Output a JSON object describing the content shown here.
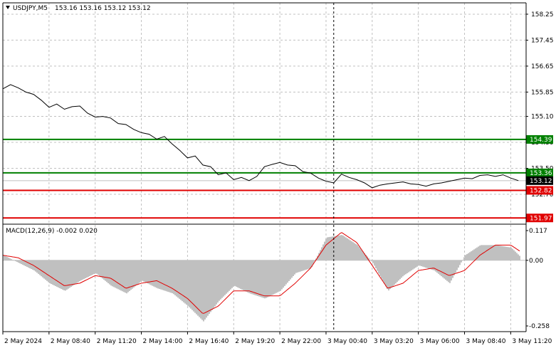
{
  "header": {
    "symbol": "USDJPY,M5",
    "ohlc": "153.16 153.16 153.12 153.12"
  },
  "macd_header": {
    "label": "MACD(12,26,9) -0.002 0.020"
  },
  "colors": {
    "price_line": "#000000",
    "grid": "#c0c0c0",
    "green_level": "#008000",
    "red_level": "#e00000",
    "current_tag": "#000000",
    "histogram": "#c0c0c0",
    "signal_line": "#e00000"
  },
  "chart_data": [
    {
      "type": "line",
      "name": "price",
      "title": "USDJPY,M5",
      "y_ticks": [
        "158.25",
        "157.45",
        "156.65",
        "155.85",
        "155.10",
        "154.30",
        "153.50",
        "152.70"
      ],
      "y_tick_values": [
        158.25,
        157.45,
        156.65,
        155.85,
        155.1,
        154.3,
        153.5,
        152.7
      ],
      "ylim": [
        151.8,
        158.6
      ],
      "x_ticks": [
        "2 May 2024",
        "2 May 08:40",
        "2 May 11:20",
        "2 May 14:00",
        "2 May 16:40",
        "2 May 19:20",
        "2 May 22:00",
        "3 May 00:40",
        "3 May 03:20",
        "3 May 06:00",
        "3 May 08:40",
        "3 May 11:20"
      ],
      "x_positions": [
        0,
        3,
        6,
        9,
        12,
        15,
        18,
        21,
        24,
        27,
        30,
        33
      ],
      "x_positions_unit": "x-axis label index",
      "x_range": [
        0,
        34
      ],
      "series": [
        {
          "x": [
            0,
            0.5,
            1,
            1.5,
            2,
            2.5,
            3,
            3.5,
            4,
            4.5,
            5,
            5.5,
            6,
            6.5,
            7,
            7.5,
            8,
            8.5,
            9,
            9.5,
            10,
            10.5,
            11,
            11.5,
            12,
            12.5,
            13,
            13.5,
            14,
            14.5,
            15,
            15.5,
            16,
            16.5,
            17,
            17.5,
            18,
            18.5,
            19,
            19.5,
            20,
            20.5,
            21,
            21.5,
            22,
            22.5,
            23,
            23.5,
            24,
            24.5,
            25,
            25.5,
            26,
            26.5,
            27,
            27.5,
            28,
            28.5,
            29,
            29.5,
            30,
            30.5,
            31,
            31.5,
            32,
            32.5,
            33,
            33.5
          ],
          "values": [
            155.95,
            156.08,
            155.98,
            155.85,
            155.78,
            155.6,
            155.38,
            155.48,
            155.32,
            155.4,
            155.42,
            155.2,
            155.08,
            155.1,
            155.05,
            154.88,
            154.85,
            154.7,
            154.6,
            154.55,
            154.4,
            154.48,
            154.25,
            154.05,
            153.82,
            153.88,
            153.6,
            153.55,
            153.3,
            153.36,
            153.15,
            153.22,
            153.12,
            153.25,
            153.55,
            153.62,
            153.68,
            153.6,
            153.58,
            153.4,
            153.35,
            153.2,
            153.1,
            153.05,
            153.32,
            153.22,
            153.15,
            153.05,
            152.9,
            152.98,
            153.02,
            153.05,
            153.08,
            153.02,
            153.0,
            152.95,
            153.02,
            153.05,
            153.1,
            153.15,
            153.2,
            153.18,
            153.28,
            153.3,
            153.25,
            153.3,
            153.2,
            153.12
          ]
        }
      ],
      "levels": [
        {
          "label": "154.39",
          "value": 154.39,
          "color": "#008000"
        },
        {
          "label": "153.36",
          "value": 153.36,
          "color": "#008000"
        },
        {
          "label": "152.82",
          "value": 152.82,
          "color": "#e00000"
        },
        {
          "label": "151.97",
          "value": 151.97,
          "color": "#e00000"
        }
      ],
      "current_price": {
        "label": "153.12",
        "value": 153.12
      },
      "cursor_x": 21.5,
      "grid": true
    },
    {
      "type": "bar",
      "name": "MACD",
      "title": "MACD(12,26,9) -0.002 0.020",
      "y_ticks": [
        "0.117",
        "0.00",
        "-0.258"
      ],
      "y_tick_values": [
        0.117,
        0.0,
        -0.258
      ],
      "ylim": [
        -0.258,
        0.117
      ],
      "x_range": [
        0,
        34
      ],
      "histogram": {
        "x": [
          0,
          1,
          2,
          3,
          4,
          5,
          6,
          7,
          8,
          9,
          10,
          11,
          12,
          13,
          14,
          15,
          16,
          17,
          18,
          19,
          20,
          21,
          22,
          23,
          24,
          25,
          26,
          27,
          28,
          29,
          30,
          31,
          32,
          33,
          34
        ],
        "values": [
          0.02,
          -0.01,
          -0.04,
          -0.09,
          -0.12,
          -0.08,
          -0.05,
          -0.1,
          -0.13,
          -0.08,
          -0.11,
          -0.13,
          -0.18,
          -0.24,
          -0.16,
          -0.1,
          -0.13,
          -0.15,
          -0.12,
          -0.05,
          -0.03,
          0.09,
          0.1,
          0.06,
          -0.01,
          -0.12,
          -0.06,
          -0.02,
          -0.04,
          -0.09,
          0.02,
          0.06,
          0.06,
          0.05,
          -0.01
        ]
      },
      "signal": {
        "x": [
          0,
          1,
          2,
          3,
          4,
          5,
          6,
          7,
          8,
          9,
          10,
          11,
          12,
          13,
          14,
          15,
          16,
          17,
          18,
          19,
          20,
          21,
          22,
          23,
          24,
          25,
          26,
          27,
          28,
          29,
          30,
          31,
          32,
          33,
          34
        ],
        "values": [
          0.02,
          0.01,
          -0.02,
          -0.06,
          -0.1,
          -0.09,
          -0.06,
          -0.07,
          -0.11,
          -0.09,
          -0.08,
          -0.11,
          -0.15,
          -0.21,
          -0.18,
          -0.12,
          -0.12,
          -0.14,
          -0.14,
          -0.09,
          -0.03,
          0.06,
          0.11,
          0.07,
          -0.02,
          -0.11,
          -0.09,
          -0.04,
          -0.03,
          -0.06,
          -0.04,
          0.02,
          0.06,
          0.06,
          0.02
        ]
      },
      "cursor_x": 21.5,
      "grid": true
    }
  ]
}
